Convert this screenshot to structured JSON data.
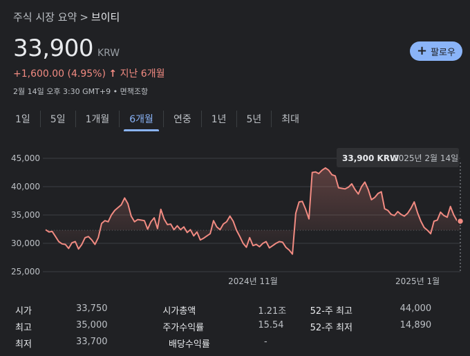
{
  "breadcrumb": {
    "parent": "주식 시장 요약",
    "separator": ">",
    "current": "브이티"
  },
  "quote": {
    "price": "33,900",
    "currency": "KRW"
  },
  "follow_button": {
    "label": "팔로우"
  },
  "change": {
    "amount": "+1,600.00 (4.95%)",
    "arrow": "↑",
    "period": "지난 6개월"
  },
  "meta": {
    "timestamp": "2월 14일 오후 3:30 GMT+9",
    "bullet": "•",
    "disclaimer": "면책조항"
  },
  "tabs": [
    {
      "label": "1일",
      "active": false
    },
    {
      "label": "5일",
      "active": false
    },
    {
      "label": "1개월",
      "active": false
    },
    {
      "label": "6개월",
      "active": true
    },
    {
      "label": "연중",
      "active": false
    },
    {
      "label": "1년",
      "active": false
    },
    {
      "label": "5년",
      "active": false
    },
    {
      "label": "최대",
      "active": false
    }
  ],
  "tooltip": {
    "price": "33,900 KRW",
    "date": "2025년 2월 14일"
  },
  "colors": {
    "line": "#f28b82",
    "accent": "#8ab4f8",
    "background": "#202124",
    "grid": "#3c4043"
  },
  "chart_data": {
    "type": "area",
    "ylim": [
      25000,
      45000
    ],
    "y_ticks": [
      "25,000",
      "30,000",
      "35,000",
      "40,000",
      "45,000"
    ],
    "y_tick_values": [
      25000,
      30000,
      35000,
      40000,
      45000
    ],
    "x_ticks": [
      {
        "label": "2024년 11월",
        "index": 63
      },
      {
        "label": "2025년 1월",
        "index": 113
      }
    ],
    "grid": true,
    "baseline": 32300,
    "values": [
      32400,
      32000,
      32100,
      31200,
      30300,
      29900,
      29800,
      29100,
      30100,
      30300,
      29000,
      29800,
      31000,
      31200,
      30600,
      29800,
      31000,
      33500,
      34000,
      33800,
      35000,
      35800,
      36300,
      36800,
      38000,
      37000,
      34800,
      33800,
      34200,
      34100,
      34000,
      32500,
      33800,
      34500,
      32600,
      36000,
      34300,
      33300,
      33400,
      32400,
      33100,
      32400,
      32900,
      31900,
      32400,
      31300,
      32000,
      30600,
      30900,
      31300,
      31700,
      34000,
      32900,
      32400,
      33400,
      33800,
      34800,
      33900,
      32300,
      31200,
      30000,
      29300,
      31000,
      29600,
      29800,
      29400,
      30000,
      30300,
      29200,
      29600,
      30000,
      30300,
      30200,
      29300,
      28800,
      28100,
      35300,
      37300,
      37400,
      36000,
      34300,
      42500,
      42600,
      42300,
      42900,
      43300,
      42900,
      42100,
      41900,
      39800,
      39700,
      39600,
      39900,
      40500,
      39500,
      38700,
      40000,
      40800,
      39500,
      37700,
      38100,
      38800,
      39100,
      36100,
      35800,
      35100,
      34900,
      35600,
      35100,
      34800,
      35300,
      36200,
      37300,
      35400,
      33900,
      32800,
      32300,
      31700,
      33900,
      34100,
      35500,
      34900,
      34600,
      36500,
      35000,
      34000,
      33900
    ],
    "last_value": 33900
  },
  "stats": [
    [
      {
        "label": "시가",
        "value": "33,750"
      },
      {
        "label": "시가총액",
        "value": "1.21조"
      },
      {
        "label": "52-주 최고",
        "value": "44,000"
      }
    ],
    [
      {
        "label": "최고",
        "value": "35,000"
      },
      {
        "label": "주가수익률",
        "value": "15.54"
      },
      {
        "label": "52-주 최저",
        "value": "14,890"
      }
    ],
    [
      {
        "label": "최저",
        "value": "33,700"
      },
      {
        "label": "배당수익률",
        "value": "-"
      },
      {
        "label": "",
        "value": ""
      }
    ]
  ]
}
